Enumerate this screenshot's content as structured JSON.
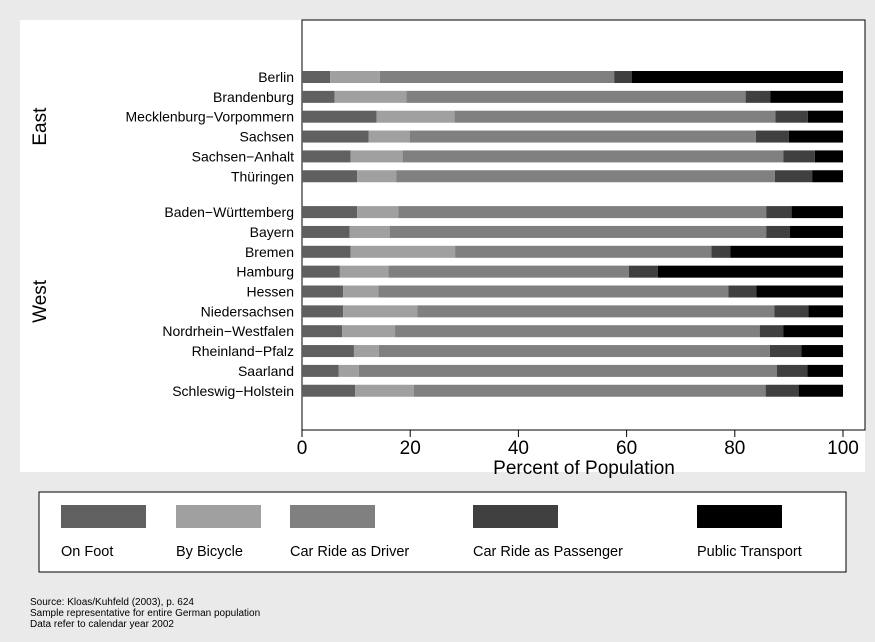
{
  "chart_data": {
    "type": "bar",
    "orientation": "horizontal",
    "stacked": true,
    "xlabel": "Percent of Population",
    "xlim": [
      0,
      100
    ],
    "xticks": [
      0,
      20,
      40,
      60,
      80,
      100
    ],
    "grid": false,
    "legend_position": "bottom",
    "groups": [
      {
        "label": "East",
        "categories": [
          "Berlin",
          "Brandenburg",
          "Mecklenburg−Vorpommern",
          "Sachsen",
          "Sachsen−Anhalt",
          "Thüringen"
        ]
      },
      {
        "label": "West",
        "categories": [
          "Baden−Württemberg",
          "Bayern",
          "Bremen",
          "Hamburg",
          "Hessen",
          "Niedersachsen",
          "Nordrhein−Westfalen",
          "Rheinland−Pfalz",
          "Saarland",
          "Schleswig−Holstein"
        ]
      }
    ],
    "categories": [
      "Berlin",
      "Brandenburg",
      "Mecklenburg−Vorpommern",
      "Sachsen",
      "Sachsen−Anhalt",
      "Thüringen",
      "Baden−Württemberg",
      "Bayern",
      "Bremen",
      "Hamburg",
      "Hessen",
      "Niedersachsen",
      "Nordrhein−Westfalen",
      "Rheinland−Pfalz",
      "Saarland",
      "Schleswig−Holstein"
    ],
    "series": [
      {
        "name": "On Foot",
        "color": "#606060",
        "values": [
          5.2,
          6.0,
          13.8,
          12.3,
          9.0,
          10.2,
          10.2,
          8.8,
          9.0,
          7.0,
          7.6,
          7.6,
          7.4,
          9.6,
          6.8,
          9.8
        ]
      },
      {
        "name": "By Bicycle",
        "color": "#a0a0a0",
        "values": [
          9.2,
          13.3,
          14.4,
          7.6,
          9.6,
          7.2,
          7.6,
          7.4,
          19.3,
          9.0,
          6.5,
          13.7,
          9.8,
          4.6,
          3.7,
          10.9
        ]
      },
      {
        "name": "Car Ride as Driver",
        "color": "#808080",
        "values": [
          43.3,
          62.7,
          59.3,
          64.0,
          70.4,
          70.0,
          68.0,
          69.6,
          47.4,
          44.4,
          64.7,
          66.0,
          67.4,
          72.3,
          77.3,
          65.0
        ]
      },
      {
        "name": "Car Ride as Passenger",
        "color": "#404040",
        "values": [
          3.3,
          4.6,
          6.0,
          6.1,
          5.8,
          6.9,
          4.7,
          4.4,
          3.5,
          5.4,
          5.2,
          6.3,
          4.4,
          5.8,
          5.6,
          6.1
        ]
      },
      {
        "name": "Public Transport",
        "color": "#000000",
        "values": [
          39.0,
          13.4,
          6.5,
          10.0,
          5.2,
          5.7,
          9.5,
          9.8,
          20.8,
          34.2,
          16.0,
          6.4,
          11.0,
          7.7,
          6.6,
          8.2
        ]
      }
    ]
  },
  "source": {
    "line1": "Source: Kloas/Kuhfeld (2003), p. 624",
    "line2": "Sample representative for entire German population",
    "line3": "Data refer to calendar year 2002"
  }
}
